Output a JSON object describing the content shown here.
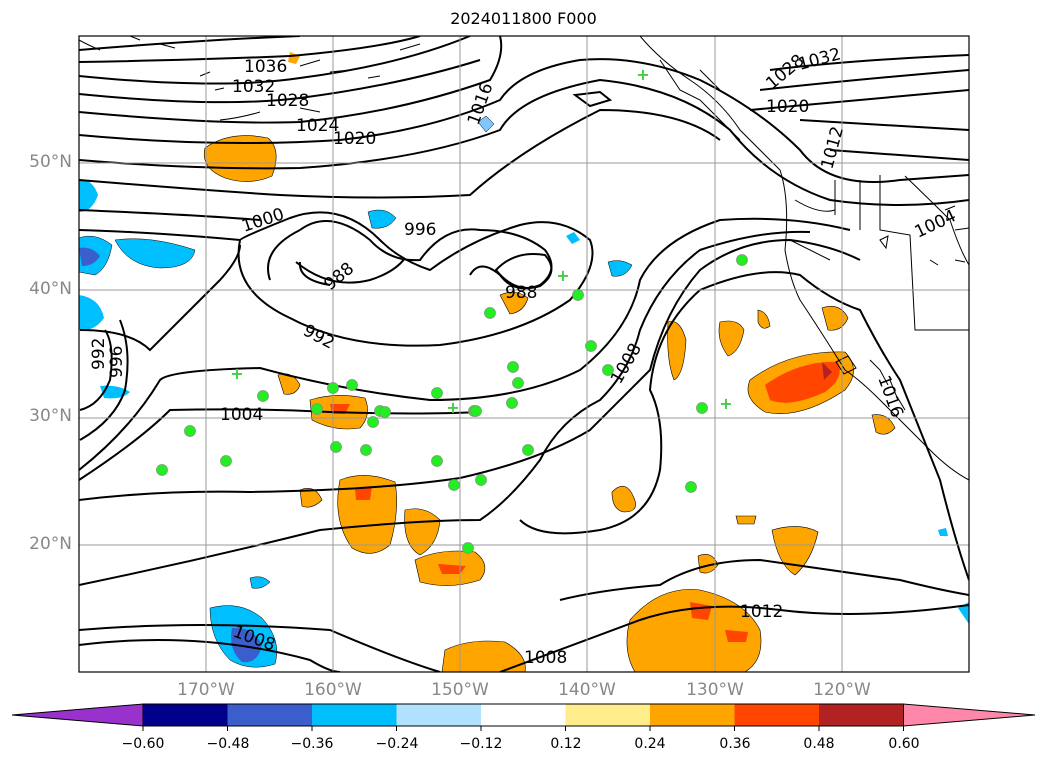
{
  "title": "2024011800 F000",
  "lat_labels": [
    "50°N",
    "40°N",
    "30°N",
    "20°N"
  ],
  "lon_labels": [
    "170°W",
    "160°W",
    "150°W",
    "140°W",
    "130°W",
    "120°W"
  ],
  "contour_labels": [
    "1036",
    "1032",
    "1028",
    "1024",
    "1020",
    "1016",
    "1000",
    "996",
    "988",
    "988",
    "992",
    "996",
    "992",
    "1004",
    "1008",
    "1008",
    "1012",
    "1008",
    "1016",
    "1032",
    "1028",
    "1020",
    "1012",
    "1004"
  ],
  "colorbar": {
    "ticks": [
      "−0.60",
      "−0.48",
      "−0.36",
      "−0.24",
      "−0.12",
      "0.12",
      "0.24",
      "0.36",
      "0.48",
      "0.60"
    ],
    "colors": [
      "#9932cc",
      "#00008b",
      "#3a5fcd",
      "#00bfff",
      "#b0e2ff",
      "#ffffff",
      "#ffec8b",
      "#ffa500",
      "#ff4500",
      "#b22222",
      "#ff88aa"
    ]
  },
  "markers": {
    "circle_color": "#22ee22",
    "cross_color": "#44cc44"
  }
}
